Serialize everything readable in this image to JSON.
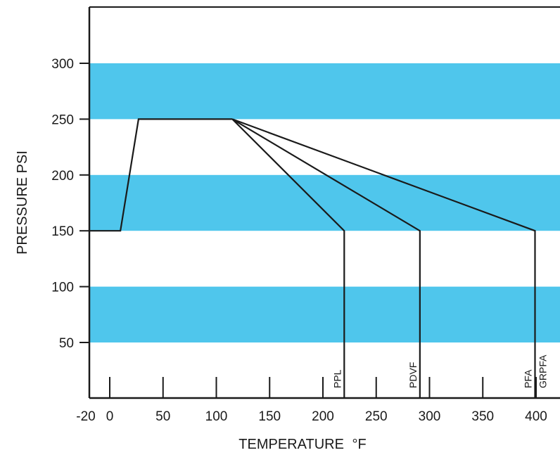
{
  "chart_data": {
    "type": "line",
    "xlabel": "TEMPERATURE",
    "xlabel_unit": "°F",
    "ylabel": "PRESSURE PSI",
    "xlim": [
      -20,
      410
    ],
    "ylim": [
      0,
      350
    ],
    "x_ticks": [
      -20,
      0,
      50,
      100,
      150,
      200,
      250,
      300,
      350,
      400
    ],
    "y_ticks": [
      50,
      100,
      150,
      200,
      250,
      300
    ],
    "bands": [
      {
        "from": 50,
        "to": 100,
        "color": "#4fc6ec"
      },
      {
        "from": 150,
        "to": 200,
        "color": "#4fc6ec"
      },
      {
        "from": 250,
        "to": 300,
        "color": "#4fc6ec"
      }
    ],
    "common_segment": {
      "points": [
        {
          "x": -20,
          "y": 150
        },
        {
          "x": 10,
          "y": 150
        },
        {
          "x": 27,
          "y": 250
        },
        {
          "x": 115,
          "y": 250
        }
      ]
    },
    "series": [
      {
        "name": "PPL",
        "label": "PPL",
        "points": [
          {
            "x": 115,
            "y": 250
          },
          {
            "x": 220,
            "y": 150
          },
          {
            "x": 220,
            "y": 0
          }
        ]
      },
      {
        "name": "PDVF",
        "label": "PDVF",
        "points": [
          {
            "x": 115,
            "y": 250
          },
          {
            "x": 291,
            "y": 150
          },
          {
            "x": 291,
            "y": 0
          }
        ]
      },
      {
        "name": "PFA GRPFA",
        "label": "PFA",
        "label2": "GRPFA",
        "points": [
          {
            "x": 115,
            "y": 250
          },
          {
            "x": 399,
            "y": 150
          },
          {
            "x": 399,
            "y": 0
          }
        ]
      }
    ],
    "line_color": "#1a1a1a"
  }
}
